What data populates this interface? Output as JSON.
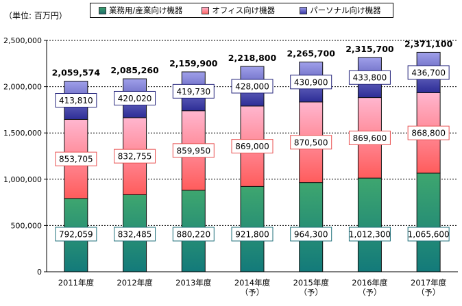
{
  "unit_label": "（単位: 百万円）",
  "chart_data": {
    "type": "bar",
    "stacked": true,
    "categories": [
      "2011年度",
      "2012年度",
      "2013年度",
      "2014年度（予）",
      "2015年度（予）",
      "2016年度（予）",
      "2017年度（予）"
    ],
    "category_lines": [
      [
        "2011年度"
      ],
      [
        "2012年度"
      ],
      [
        "2013年度"
      ],
      [
        "2014年度",
        "（予）"
      ],
      [
        "2015年度",
        "（予）"
      ],
      [
        "2016年度",
        "（予）"
      ],
      [
        "2017年度",
        "（予）"
      ]
    ],
    "series": [
      {
        "name": "業務用/産業向け機器",
        "color": "#2e8b57",
        "values": [
          792059,
          832485,
          880220,
          921800,
          964300,
          1012300,
          1065600
        ],
        "labels": [
          "792,059",
          "832,485",
          "880,220",
          "921,800",
          "964,300",
          "1,012,300",
          "1,065,600"
        ]
      },
      {
        "name": "オフィス向け機器",
        "color": "#ff6f7a",
        "values": [
          853705,
          832755,
          859950,
          869000,
          870500,
          869600,
          868800
        ],
        "labels": [
          "853,705",
          "832,755",
          "859,950",
          "869,000",
          "870,500",
          "869,600",
          "868,800"
        ]
      },
      {
        "name": "パーソナル向け機器",
        "color": "#5f5fd8",
        "values": [
          413810,
          420020,
          419730,
          428000,
          430900,
          433800,
          436700
        ],
        "labels": [
          "413,810",
          "420,020",
          "419,730",
          "428,000",
          "430,900",
          "433,800",
          "436,700"
        ]
      }
    ],
    "totals": [
      "2,059,574",
      "2,085,260",
      "2,159,900",
      "2,218,800",
      "2,265,700",
      "2,315,700",
      "2,371,100"
    ],
    "ylim": [
      0,
      2500000
    ],
    "yticks": [
      0,
      500000,
      1000000,
      1500000,
      2000000,
      2500000
    ],
    "ytick_labels": [
      "0",
      "500,000",
      "1,000,000",
      "1,500,000",
      "2,000,000",
      "2,500,000"
    ],
    "grid": true,
    "legend_position": "top"
  }
}
